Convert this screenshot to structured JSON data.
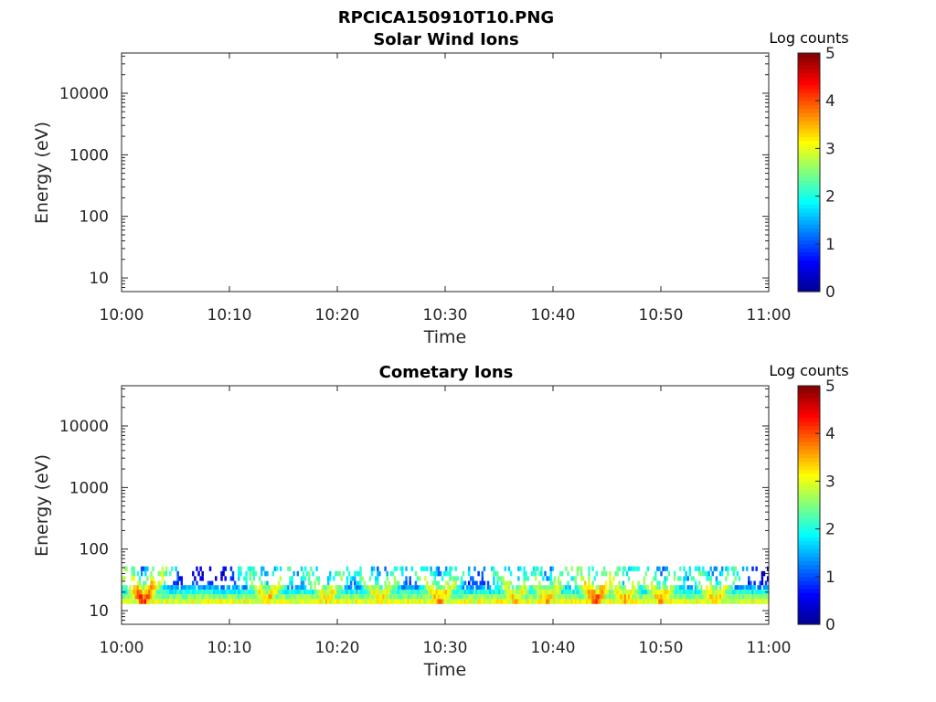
{
  "figure": {
    "title": "RPCICA150910T10.PNG"
  },
  "colors": {
    "colormap": "jet",
    "jet_stops": [
      "#00008f",
      "#0000ff",
      "#007fff",
      "#00ffff",
      "#7fff7f",
      "#ffff00",
      "#ff7f00",
      "#ff0000",
      "#7f0000"
    ]
  },
  "chart_data": [
    {
      "type": "heatmap",
      "title": "Solar Wind Ions",
      "xlabel": "Time",
      "ylabel": "Energy (eV)",
      "x_ticks": [
        "10:00",
        "10:10",
        "10:20",
        "10:30",
        "10:40",
        "10:50",
        "11:00"
      ],
      "y_scale": "log",
      "y_ticks": [
        10,
        100,
        1000,
        10000
      ],
      "y_tick_labels": [
        "10",
        "100",
        "1000",
        "10000"
      ],
      "ylim": [
        6,
        45000
      ],
      "colorbar": {
        "label": "Log counts",
        "range": [
          0,
          5
        ],
        "ticks": [
          "0",
          "1",
          "2",
          "3",
          "4",
          "5"
        ]
      },
      "data": "empty"
    },
    {
      "type": "heatmap",
      "title": "Cometary Ions",
      "xlabel": "Time",
      "ylabel": "Energy (eV)",
      "x_ticks": [
        "10:00",
        "10:10",
        "10:20",
        "10:30",
        "10:40",
        "10:50",
        "11:00"
      ],
      "y_scale": "log",
      "y_ticks": [
        10,
        100,
        1000,
        10000
      ],
      "y_tick_labels": [
        "10",
        "100",
        "1000",
        "10000"
      ],
      "ylim": [
        6,
        45000
      ],
      "colorbar": {
        "label": "Log counts",
        "range": [
          0,
          5
        ],
        "ticks": [
          "0",
          "1",
          "2",
          "3",
          "4",
          "5"
        ]
      },
      "energy_bins_eV": [
        14,
        17,
        20,
        24,
        28,
        33,
        40,
        48
      ],
      "background_level_by_bin": [
        3.0,
        2.5,
        2.0,
        1.4,
        0.8,
        0.4,
        0.25,
        0.2
      ],
      "events": [
        {
          "time_min": 2,
          "peak_log_counts": 4.1
        },
        {
          "time_min": 13.5,
          "peak_log_counts": 3.4
        },
        {
          "time_min": 19,
          "peak_log_counts": 3.3
        },
        {
          "time_min": 24,
          "peak_log_counts": 3.3
        },
        {
          "time_min": 29.5,
          "peak_log_counts": 3.5
        },
        {
          "time_min": 36.5,
          "peak_log_counts": 3.3
        },
        {
          "time_min": 39.5,
          "peak_log_counts": 3.4
        },
        {
          "time_min": 44,
          "peak_log_counts": 4.0
        },
        {
          "time_min": 46.5,
          "peak_log_counts": 3.5
        },
        {
          "time_min": 50,
          "peak_log_counts": 3.4
        },
        {
          "time_min": 55,
          "peak_log_counts": 3.4
        }
      ]
    }
  ]
}
